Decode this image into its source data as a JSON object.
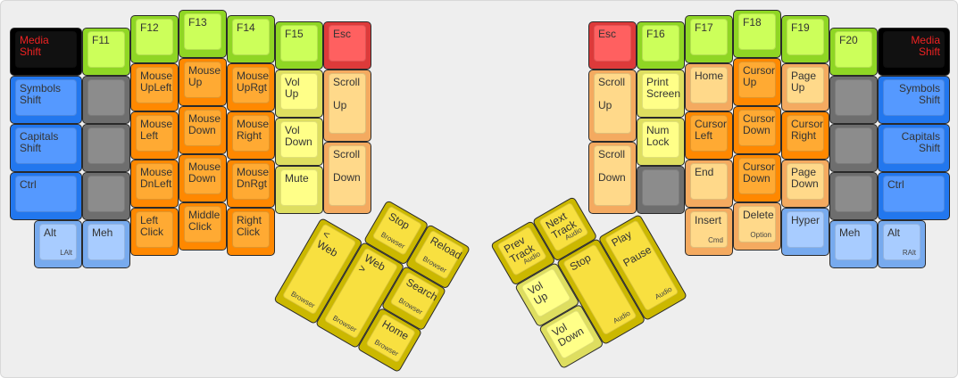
{
  "layout": {
    "left_keys": [
      {
        "label": "Media\nShift",
        "color": "#111111",
        "text_color": "#ee2222"
      },
      {
        "label": "Symbols\nShift",
        "color": "#5599ff"
      },
      {
        "label": "Capitals\nShift",
        "color": "#5599ff"
      },
      {
        "label": "Ctrl",
        "color": "#5599ff"
      },
      {
        "label": "Alt",
        "sub": "LAlt",
        "color": "#a8ccff"
      },
      {
        "label": "F11",
        "color": "#ccff5a"
      },
      {
        "label": "",
        "color": "#8c8c8c"
      },
      {
        "label": "",
        "color": "#8c8c8c"
      },
      {
        "label": "",
        "color": "#8c8c8c"
      },
      {
        "label": "Meh",
        "color": "#a8ccff"
      },
      {
        "label": "F12",
        "color": "#ccff5a"
      },
      {
        "label": "Mouse\nUpLeft",
        "color": "#ffaa33"
      },
      {
        "label": "Mouse\nLeft",
        "color": "#ffaa33"
      },
      {
        "label": "Mouse\nDnLeft",
        "color": "#ffaa33"
      },
      {
        "label": "Left\nClick",
        "color": "#ffaa33"
      },
      {
        "label": "F13",
        "color": "#ccff5a"
      },
      {
        "label": "Mouse\nUp",
        "color": "#ffaa33"
      },
      {
        "label": "Mouse\nDown",
        "color": "#ffaa33"
      },
      {
        "label": "Mouse\nDown",
        "color": "#ffaa33"
      },
      {
        "label": "Middle\nClick",
        "color": "#ffaa33"
      },
      {
        "label": "F14",
        "color": "#ccff5a"
      },
      {
        "label": "Mouse\nUpRgt",
        "color": "#ffaa33"
      },
      {
        "label": "Mouse\nRight",
        "color": "#ffaa33"
      },
      {
        "label": "Mouse\nDnRgt",
        "color": "#ffaa33"
      },
      {
        "label": "Right\nClick",
        "color": "#ffaa33"
      },
      {
        "label": "F15",
        "color": "#ccff5a"
      },
      {
        "label": "Vol\nUp",
        "color": "#ffff88"
      },
      {
        "label": "Vol\nDown",
        "color": "#ffff88"
      },
      {
        "label": "Mute",
        "color": "#ffff88"
      },
      {
        "label": "Esc",
        "color": "#ff6060"
      },
      {
        "label": "Scroll\n\nUp",
        "color": "#ffd98a"
      },
      {
        "label": "Scroll\n\nDown",
        "color": "#ffd98a"
      }
    ],
    "left_thumb": [
      {
        "label": "Stop",
        "sub": "Browser",
        "color": "#f8e040"
      },
      {
        "label": "Reload",
        "sub": "Browser",
        "color": "#f8e040"
      },
      {
        "label": "< Web",
        "sub": "Browser",
        "color": "#f8e040"
      },
      {
        "label": "Web >",
        "sub": "Browser",
        "color": "#f8e040"
      },
      {
        "label": "Search",
        "sub": "Browser",
        "color": "#f8e040"
      },
      {
        "label": "Home",
        "sub": "Browser",
        "color": "#f8e040"
      }
    ],
    "right_keys": [
      {
        "label": "Esc",
        "color": "#ff6060"
      },
      {
        "label": "Scroll\n\nUp",
        "color": "#ffd98a"
      },
      {
        "label": "Scroll\n\nDown",
        "color": "#ffd98a"
      },
      {
        "label": "F16",
        "color": "#ccff5a"
      },
      {
        "label": "Print\nScreen",
        "color": "#ffff88"
      },
      {
        "label": "Num\nLock",
        "color": "#ffff88"
      },
      {
        "label": "",
        "color": "#8c8c8c"
      },
      {
        "label": "F17",
        "color": "#ccff5a"
      },
      {
        "label": "Home",
        "color": "#ffd98a"
      },
      {
        "label": "Cursor\nLeft",
        "color": "#ffaa33"
      },
      {
        "label": "End",
        "color": "#ffd98a"
      },
      {
        "label": "Insert",
        "sub": "Cmd",
        "color": "#ffd98a"
      },
      {
        "label": "F18",
        "color": "#ccff5a"
      },
      {
        "label": "Cursor\nUp",
        "color": "#ffaa33"
      },
      {
        "label": "Cursor\nDown",
        "color": "#ffaa33"
      },
      {
        "label": "Cursor\nDown",
        "color": "#ffaa33"
      },
      {
        "label": "Delete",
        "sub": "Option",
        "color": "#ffd98a"
      },
      {
        "label": "F19",
        "color": "#ccff5a"
      },
      {
        "label": "Page\nUp",
        "color": "#ffd98a"
      },
      {
        "label": "Cursor\nRight",
        "color": "#ffaa33"
      },
      {
        "label": "Page\nDown",
        "color": "#ffd98a"
      },
      {
        "label": "Hyper",
        "color": "#a8ccff"
      },
      {
        "label": "F20",
        "color": "#ccff5a"
      },
      {
        "label": "",
        "color": "#8c8c8c"
      },
      {
        "label": "",
        "color": "#8c8c8c"
      },
      {
        "label": "",
        "color": "#8c8c8c"
      },
      {
        "label": "Meh",
        "color": "#a8ccff"
      },
      {
        "label": "Media\nShift",
        "color": "#111111",
        "text_color": "#ee2222"
      },
      {
        "label": "Symbols\nShift",
        "color": "#5599ff"
      },
      {
        "label": "Capitals\nShift",
        "color": "#5599ff"
      },
      {
        "label": "Ctrl",
        "color": "#5599ff"
      },
      {
        "label": "Alt",
        "sub": "RAlt",
        "color": "#a8ccff"
      }
    ],
    "right_thumb": [
      {
        "label": "Prev\nTrack",
        "sub": "Audio",
        "color": "#f8e040"
      },
      {
        "label": "Next\nTrack",
        "sub": "Audio",
        "color": "#f8e040"
      },
      {
        "label": "Vol\nUp",
        "color": "#ffff88"
      },
      {
        "label": "Vol\nDown",
        "color": "#ffff88"
      },
      {
        "label": "Stop",
        "sub": "Audio",
        "color": "#f8e040"
      },
      {
        "label": "Play\n\nPause",
        "sub": "Audio",
        "color": "#f8e040"
      }
    ]
  }
}
